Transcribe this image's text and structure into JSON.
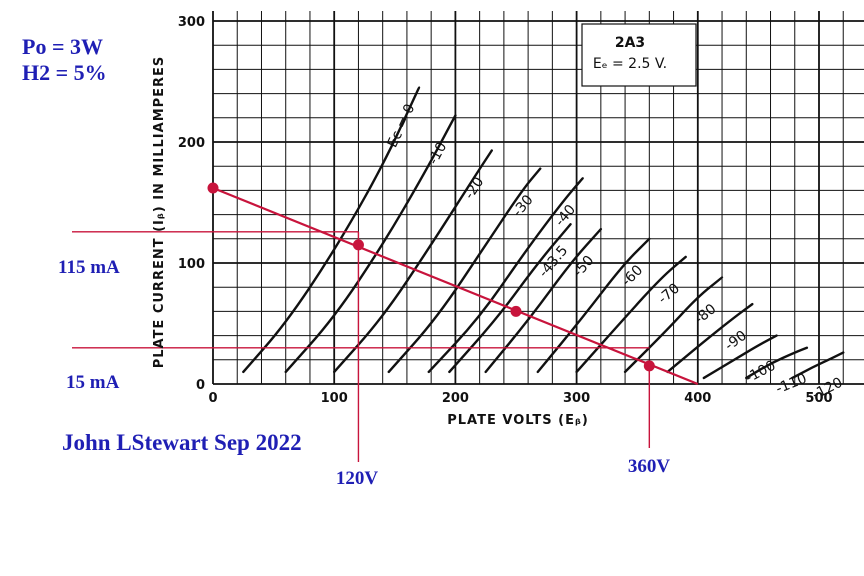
{
  "annotations": {
    "power": "Po = 3W",
    "distortion": "H2 = 5%",
    "author": "John LStewart Sep 2022",
    "current_hi": "115 mA",
    "current_lo": "15 mA",
    "volt_hi_label": "120V",
    "volt_lo_label": "360V"
  },
  "legend_box": {
    "tube": "2A3",
    "filament": "Eₑ = 2.5 V."
  },
  "colors": {
    "load_line": "#c8143c",
    "annotation_text": "#1f1fb4",
    "grid": "#111111",
    "curves": "#111111"
  },
  "chart_data": {
    "type": "line",
    "xlabel": "PLATE VOLTS (Eᵦ)",
    "ylabel": "PLATE CURRENT (Iᵦ) IN MILLIAMPERES",
    "xlim": [
      0,
      500
    ],
    "ylim": [
      0,
      300
    ],
    "x_ticks": [
      "0",
      "100",
      "200",
      "300",
      "400",
      "500"
    ],
    "y_ticks": [
      "0",
      "100",
      "200",
      "300"
    ],
    "grid": true,
    "series": [
      {
        "name": "Ec = 0",
        "x": [
          25,
          60,
          100,
          140,
          170
        ],
        "y": [
          10,
          50,
          110,
          180,
          245
        ]
      },
      {
        "name": "-10",
        "x": [
          60,
          100,
          140,
          175,
          200
        ],
        "y": [
          10,
          55,
          115,
          175,
          222
        ]
      },
      {
        "name": "-20",
        "x": [
          100,
          140,
          180,
          215,
          230
        ],
        "y": [
          10,
          55,
          115,
          170,
          193
        ]
      },
      {
        "name": "-30",
        "x": [
          145,
          185,
          225,
          255,
          270
        ],
        "y": [
          10,
          55,
          115,
          160,
          178
        ]
      },
      {
        "name": "-40",
        "x": [
          178,
          220,
          258,
          288,
          305
        ],
        "y": [
          10,
          55,
          110,
          150,
          170
        ]
      },
      {
        "name": "-43.5",
        "x": [
          195,
          235,
          268,
          295
        ],
        "y": [
          10,
          55,
          100,
          132
        ]
      },
      {
        "name": "-50",
        "x": [
          225,
          262,
          295,
          320
        ],
        "y": [
          10,
          55,
          100,
          128
        ]
      },
      {
        "name": "-60",
        "x": [
          268,
          305,
          338,
          360
        ],
        "y": [
          10,
          55,
          98,
          120
        ]
      },
      {
        "name": "-70",
        "x": [
          300,
          340,
          370,
          390
        ],
        "y": [
          10,
          55,
          88,
          105
        ]
      },
      {
        "name": "-80",
        "x": [
          340,
          375,
          400,
          420
        ],
        "y": [
          10,
          45,
          72,
          88
        ]
      },
      {
        "name": "-90",
        "x": [
          375,
          405,
          430,
          445
        ],
        "y": [
          10,
          35,
          55,
          66
        ]
      },
      {
        "name": "-100",
        "x": [
          405,
          430,
          450,
          465
        ],
        "y": [
          5,
          20,
          32,
          40
        ]
      },
      {
        "name": "-110",
        "x": [
          440,
          460,
          480,
          490
        ],
        "y": [
          5,
          17,
          26,
          30
        ]
      },
      {
        "name": "-120",
        "x": [
          478,
          495,
          510,
          520
        ],
        "y": [
          5,
          14,
          21,
          26
        ]
      }
    ],
    "load_line": {
      "x": [
        0,
        400
      ],
      "y": [
        162,
        0
      ]
    },
    "operating_points": [
      {
        "x": 0,
        "y": 162
      },
      {
        "x": 120,
        "y": 115
      },
      {
        "x": 250,
        "y": 60
      },
      {
        "x": 360,
        "y": 15
      }
    ],
    "curve_labels": [
      "Ec = 0",
      "-10",
      "-20",
      "-30",
      "-40",
      "-43.5",
      "-50",
      "-60",
      "-70",
      "-80",
      "-90",
      "-100",
      "-110",
      "-120"
    ]
  }
}
